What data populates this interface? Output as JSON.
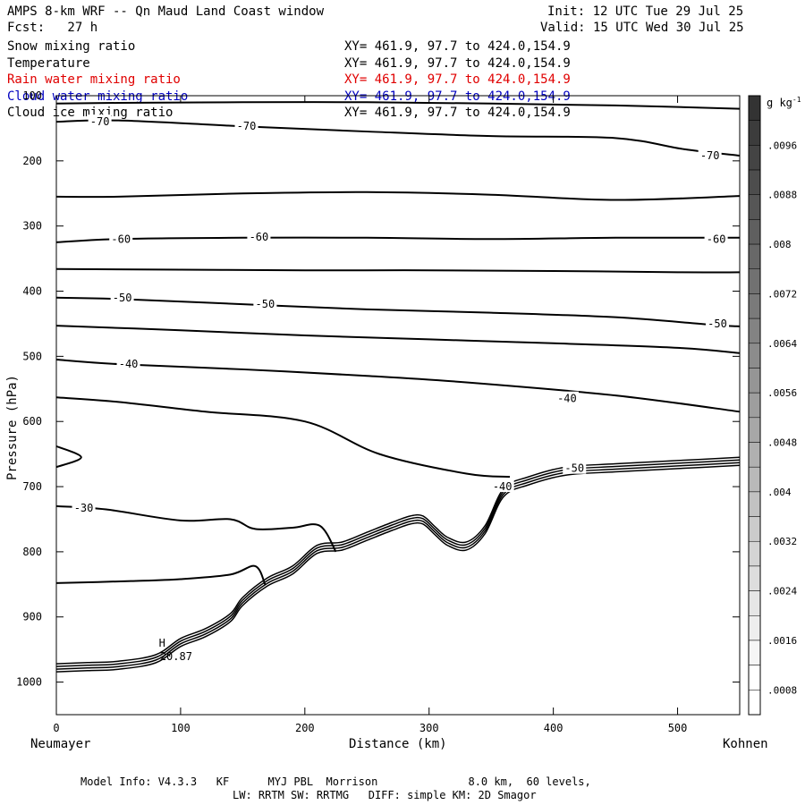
{
  "header": {
    "title": "AMPS 8-km WRF -- Qn Maud Land Coast window",
    "fcst": "Fcst:   27 h",
    "init": "Init: 12 UTC Tue 29 Jul 25",
    "valid": "Valid: 15 UTC Wed 30 Jul 25"
  },
  "fields": [
    {
      "name": "Snow mixing ratio",
      "xy": "XY= 461.9, 97.7 to 424.0,154.9",
      "color": "#000000"
    },
    {
      "name": "Temperature",
      "xy": "XY= 461.9, 97.7 to 424.0,154.9",
      "color": "#000000"
    },
    {
      "name": "Rain water mixing ratio",
      "xy": "XY= 461.9, 97.7 to 424.0,154.9",
      "color": "#e00000"
    },
    {
      "name": "Cloud water mixing ratio",
      "xy": "XY= 461.9, 97.7 to 424.0,154.9",
      "color": "#0000c0"
    },
    {
      "name": "Cloud ice mixing ratio",
      "xy": "XY= 461.9, 97.7 to 424.0,154.9",
      "color": "#000000"
    }
  ],
  "chart_data": {
    "type": "line",
    "ylabel": "Pressure (hPa)",
    "xlabel": "Distance (km)",
    "x_start_label": "Neumayer",
    "x_end_label": "Kohnen",
    "xlim": [
      0,
      550
    ],
    "ylim": [
      1050,
      100
    ],
    "xticks": [
      0,
      100,
      200,
      300,
      400,
      500
    ],
    "yticks": [
      100,
      200,
      300,
      400,
      500,
      600,
      700,
      800,
      900,
      1000
    ],
    "high_marker": {
      "symbol": "H",
      "value": "-20.87",
      "x": 65,
      "p": 950
    },
    "contour_labels": [
      {
        "text": "-70",
        "x": 35,
        "p": 140
      },
      {
        "text": "-70",
        "x": 153,
        "p": 147
      },
      {
        "text": "-70",
        "x": 526,
        "p": 192
      },
      {
        "text": "-60",
        "x": 52,
        "p": 320
      },
      {
        "text": "-60",
        "x": 163,
        "p": 317
      },
      {
        "text": "-60",
        "x": 531,
        "p": 320
      },
      {
        "text": "-50",
        "x": 53,
        "p": 410
      },
      {
        "text": "-50",
        "x": 168,
        "p": 420
      },
      {
        "text": "-50",
        "x": 532,
        "p": 450
      },
      {
        "text": "-40",
        "x": 58,
        "p": 512
      },
      {
        "text": "-40",
        "x": 411,
        "p": 565
      },
      {
        "text": "-40",
        "x": 359,
        "p": 700
      },
      {
        "text": "-50",
        "x": 417,
        "p": 672
      },
      {
        "text": "-30",
        "x": 22,
        "p": 733
      }
    ],
    "contours": [
      {
        "x": [
          0,
          50,
          150,
          250,
          350,
          450,
          550
        ],
        "p": [
          112,
          111,
          110,
          110,
          112,
          115,
          120
        ]
      },
      {
        "x": [
          0,
          50,
          150,
          250,
          350,
          450,
          505,
          550
        ],
        "p": [
          140,
          138,
          147,
          155,
          162,
          165,
          182,
          192
        ]
      },
      {
        "x": [
          0,
          50,
          150,
          250,
          350,
          450,
          550
        ],
        "p": [
          255,
          255,
          250,
          248,
          252,
          260,
          254
        ]
      },
      {
        "x": [
          0,
          50,
          150,
          250,
          350,
          450,
          550
        ],
        "p": [
          325,
          320,
          318,
          318,
          320,
          318,
          318
        ]
      },
      {
        "x": [
          0,
          100,
          200,
          300,
          400,
          500,
          550
        ],
        "p": [
          366,
          367,
          368,
          368,
          369,
          371,
          371
        ]
      },
      {
        "x": [
          0,
          50,
          150,
          250,
          350,
          450,
          530,
          550
        ],
        "p": [
          410,
          412,
          420,
          428,
          433,
          440,
          452,
          454
        ]
      },
      {
        "x": [
          0,
          100,
          200,
          300,
          400,
          500,
          550
        ],
        "p": [
          453,
          460,
          468,
          474,
          480,
          487,
          495
        ]
      },
      {
        "x": [
          0,
          50,
          150,
          250,
          330,
          450,
          550
        ],
        "p": [
          505,
          512,
          520,
          530,
          540,
          560,
          585
        ]
      },
      {
        "x": [
          0,
          50,
          120,
          200,
          260,
          330,
          365
        ],
        "p": [
          563,
          570,
          585,
          600,
          650,
          680,
          685
        ]
      },
      {
        "x": [
          0,
          20,
          0
        ],
        "p": [
          638,
          655,
          670
        ]
      },
      {
        "x": [
          0,
          40,
          100,
          140,
          160,
          190,
          212,
          225
        ],
        "p": [
          730,
          735,
          752,
          750,
          765,
          763,
          760,
          800
        ]
      },
      {
        "x": [
          0,
          60,
          100,
          140,
          160,
          168
        ],
        "p": [
          848,
          845,
          842,
          835,
          822,
          850
        ]
      }
    ],
    "terrain": {
      "x": [
        0,
        25,
        50,
        80,
        100,
        120,
        140,
        150,
        170,
        190,
        210,
        230,
        250,
        270,
        285,
        295,
        305,
        315,
        330,
        345,
        360,
        380,
        410,
        450,
        500,
        550
      ],
      "p": [
        972,
        970,
        968,
        958,
        933,
        918,
        895,
        870,
        840,
        822,
        790,
        785,
        770,
        755,
        745,
        745,
        762,
        778,
        785,
        760,
        703,
        685,
        670,
        665,
        660,
        655
      ]
    }
  },
  "colorbar": {
    "unit": "g kg",
    "unit_exp": "-1",
    "labels": [
      ".0096",
      ".0088",
      ".008",
      ".0072",
      ".0064",
      ".0056",
      ".0048",
      ".004",
      ".0032",
      ".0024",
      ".0016",
      ".0008"
    ],
    "colors": [
      "#333333",
      "#3c3c3c",
      "#444444",
      "#4d4d4d",
      "#565656",
      "#5f5f5f",
      "#686868",
      "#717171",
      "#7a7a7a",
      "#838383",
      "#8c8c8c",
      "#959595",
      "#9e9e9e",
      "#a7a7a7",
      "#b0b0b0",
      "#b9b9b9",
      "#c2c2c2",
      "#cbcbcb",
      "#d4d4d4",
      "#dddddd",
      "#e6e6e6",
      "#eeeeee",
      "#f6f6f6",
      "#ffffff",
      "#ffffff"
    ]
  },
  "footer": {
    "model_info": "Model Info: V4.3.3   KF      MYJ PBL  Morrison              8.0 km,  60 levels,",
    "model_info2": "LW: RRTM SW: RRTMG   DIFF: simple KM: 2D Smagor"
  }
}
